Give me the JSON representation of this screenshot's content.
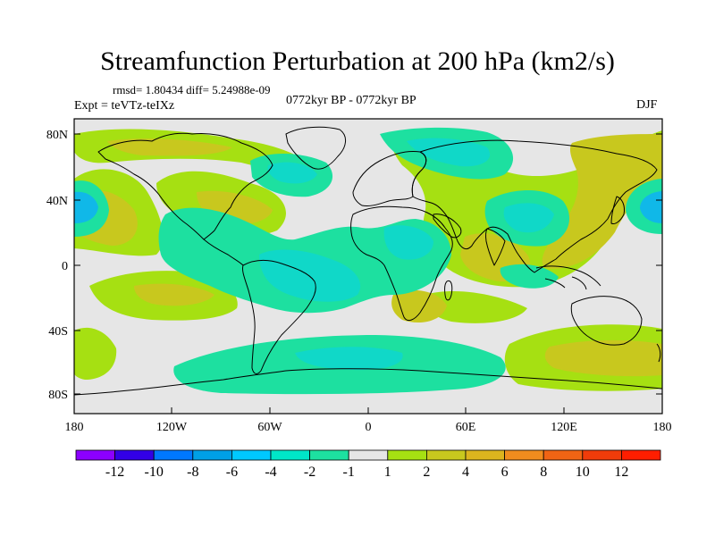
{
  "title": "Streamfunction Perturbation at 200 hPa (km2/s)",
  "stats_line": "rmsd= 1.80434 diff= 5.24988e-09",
  "expt_line": "Expt = teVTz-teIXz",
  "period_line": "0772kyr BP - 0772kyr BP",
  "season": "DJF",
  "colors": {
    "neutral": "#e6e6e6",
    "c_m1": "#1de0a0",
    "c_m2": "#10d8c8",
    "c_m4": "#10b8e8",
    "c_p1": "#a6e012",
    "c_p2": "#c8c81e",
    "c_p4": "#dcb41e"
  },
  "lat_labels": [
    "80N",
    "40N",
    "0",
    "40S",
    "80S"
  ],
  "lon_labels": [
    "180",
    "120W",
    "60W",
    "0",
    "60E",
    "120E",
    "180"
  ],
  "colorbar": {
    "colors": [
      "#8c00ff",
      "#3200e6",
      "#0078ff",
      "#00a0e6",
      "#00c8ff",
      "#00e6c8",
      "#1de0a0",
      "#e6e6e6",
      "#a6e012",
      "#c8c81e",
      "#dcb41e",
      "#f08c1e",
      "#f06414",
      "#f03c0a",
      "#ff1e00"
    ],
    "labels": [
      "-12",
      "-10",
      "-8",
      "-6",
      "-4",
      "-2",
      "-1",
      "1",
      "2",
      "4",
      "6",
      "8",
      "10",
      "12"
    ]
  }
}
